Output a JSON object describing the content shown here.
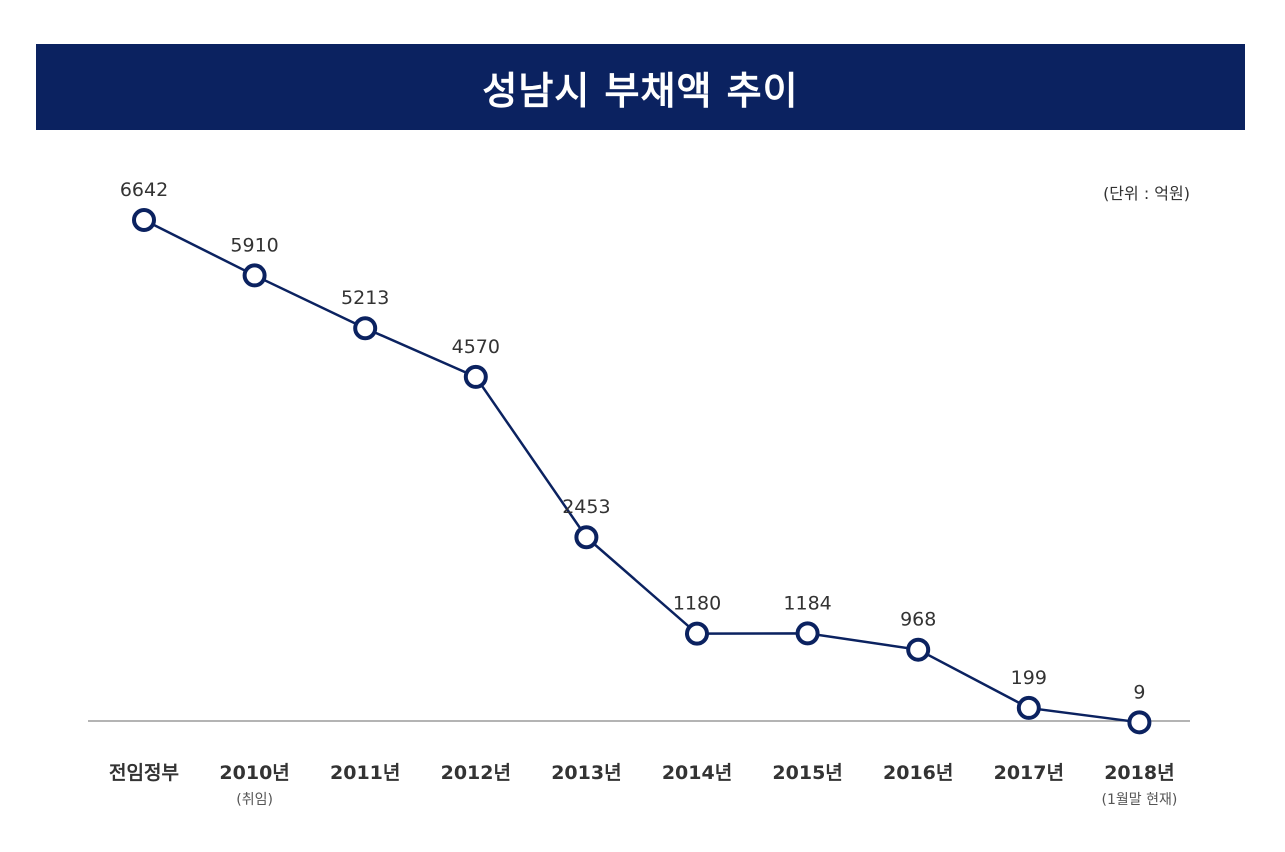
{
  "chart_data": {
    "type": "line",
    "title": "성남시 부채액 추이",
    "unit": "(단위 : 억원)",
    "categories": [
      "전임정부",
      "2010년",
      "2011년",
      "2012년",
      "2013년",
      "2014년",
      "2015년",
      "2016년",
      "2017년",
      "2018년"
    ],
    "sublabels": [
      "",
      "(취임)",
      "",
      "",
      "",
      "",
      "",
      "",
      "",
      "(1월말 현재)"
    ],
    "values": [
      6642,
      5910,
      5213,
      4570,
      2453,
      1180,
      1184,
      968,
      199,
      9
    ],
    "value_labels": [
      "6642",
      "5910",
      "5213",
      "4570",
      "2453",
      "1180",
      "1184",
      "968",
      "199",
      "9"
    ],
    "ylim": [
      0,
      7000
    ],
    "grid": false,
    "xlabel": "",
    "ylabel": ""
  },
  "colors": {
    "banner": "#0b2260",
    "line": "#0b2260",
    "marker_fill": "#ffffff",
    "axis": "#888888",
    "text": "#333333"
  }
}
